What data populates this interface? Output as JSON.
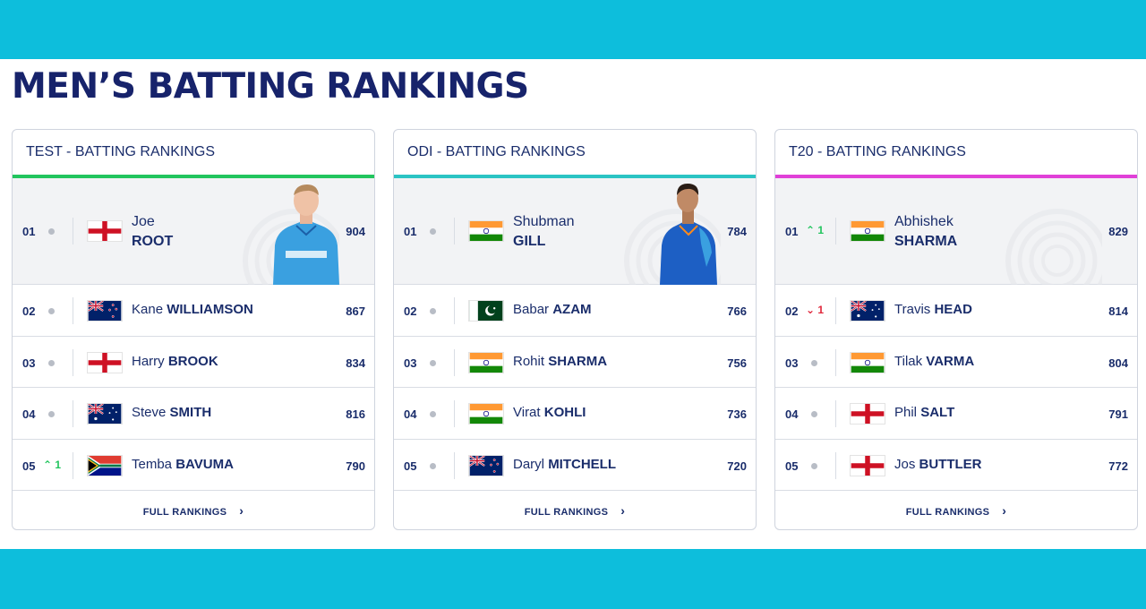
{
  "page": {
    "title": "MEN’S BATTING RANKINGS"
  },
  "colors": {
    "banner": "#0dbedc",
    "title": "#17236b",
    "test_accent": "#22c55e",
    "odi_accent": "#2bc4c4",
    "t20_accent": "#e040d8",
    "up": "#22c55e",
    "down": "#e0283c"
  },
  "cards": [
    {
      "title": "TEST - BATTING RANKINGS",
      "footer": "FULL RANKINGS",
      "top": {
        "rank": "01",
        "move": "",
        "flag": "england-flag",
        "first": "Joe",
        "last": "ROOT",
        "rating": "904"
      },
      "rows": [
        {
          "rank": "02",
          "move": "",
          "flag": "new-zealand-flag",
          "first": "Kane",
          "last": "WILLIAMSON",
          "rating": "867"
        },
        {
          "rank": "03",
          "move": "",
          "flag": "england-flag",
          "first": "Harry",
          "last": "BROOK",
          "rating": "834"
        },
        {
          "rank": "04",
          "move": "",
          "flag": "australia-flag",
          "first": "Steve",
          "last": "SMITH",
          "rating": "816"
        },
        {
          "rank": "05",
          "move": "1",
          "flag": "south-africa-flag",
          "first": "Temba",
          "last": "BAVUMA",
          "rating": "790"
        }
      ]
    },
    {
      "title": "ODI - BATTING RANKINGS",
      "footer": "FULL RANKINGS",
      "top": {
        "rank": "01",
        "move": "",
        "flag": "india-flag",
        "first": "Shubman",
        "last": "GILL",
        "rating": "784"
      },
      "rows": [
        {
          "rank": "02",
          "move": "",
          "flag": "pakistan-flag",
          "first": "Babar",
          "last": "AZAM",
          "rating": "766"
        },
        {
          "rank": "03",
          "move": "",
          "flag": "india-flag",
          "first": "Rohit",
          "last": "SHARMA",
          "rating": "756"
        },
        {
          "rank": "04",
          "move": "",
          "flag": "india-flag",
          "first": "Virat",
          "last": "KOHLI",
          "rating": "736"
        },
        {
          "rank": "05",
          "move": "",
          "flag": "new-zealand-flag",
          "first": "Daryl",
          "last": "MITCHELL",
          "rating": "720"
        }
      ]
    },
    {
      "title": "T20 - BATTING RANKINGS",
      "footer": "FULL RANKINGS",
      "top": {
        "rank": "01",
        "move": "1",
        "flag": "india-flag",
        "first": "Abhishek",
        "last": "SHARMA",
        "rating": "829"
      },
      "rows": [
        {
          "rank": "02",
          "move": "1",
          "flag": "australia-flag",
          "first": "Travis",
          "last": "HEAD",
          "rating": "814"
        },
        {
          "rank": "03",
          "move": "",
          "flag": "india-flag",
          "first": "Tilak",
          "last": "VARMA",
          "rating": "804"
        },
        {
          "rank": "04",
          "move": "",
          "flag": "england-flag",
          "first": "Phil",
          "last": "SALT",
          "rating": "791"
        },
        {
          "rank": "05",
          "move": "",
          "flag": "england-flag",
          "first": "Jos",
          "last": "BUTTLER",
          "rating": "772"
        }
      ]
    }
  ]
}
